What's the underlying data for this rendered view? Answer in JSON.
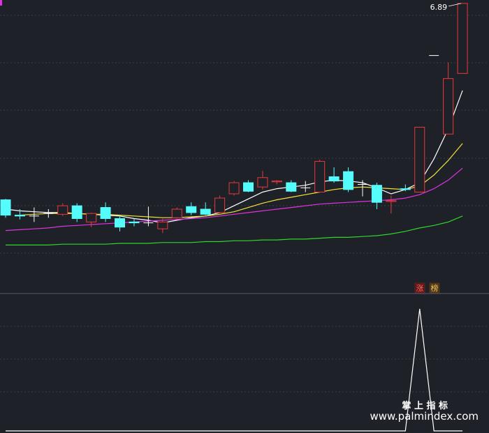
{
  "chart_data": [
    {
      "type": "candlestick",
      "open": [
        4.59,
        4.41,
        4.4,
        4.43,
        4.42,
        4.52,
        4.33,
        4.5,
        4.37,
        4.33,
        4.32,
        4.25,
        4.38,
        4.51,
        4.48,
        4.44,
        4.66,
        4.79,
        4.74,
        4.8,
        4.79,
        4.73,
        4.68,
        4.86,
        4.92,
        4.77,
        4.76,
        4.57,
        4.72,
        4.68,
        6.28,
        5.36,
        6.07
      ],
      "high": [
        4.6,
        4.48,
        4.5,
        4.48,
        4.55,
        4.55,
        4.44,
        4.56,
        4.41,
        4.37,
        4.51,
        4.37,
        4.5,
        4.56,
        4.56,
        4.64,
        4.81,
        4.82,
        4.93,
        4.82,
        4.82,
        4.81,
        5.06,
        4.97,
        4.97,
        4.82,
        4.79,
        4.64,
        4.77,
        5.44,
        6.28,
        6.2,
        6.89
      ],
      "low": [
        4.38,
        4.36,
        4.33,
        4.38,
        4.4,
        4.33,
        4.27,
        4.33,
        4.22,
        4.28,
        4.28,
        4.2,
        4.37,
        4.41,
        4.41,
        4.43,
        4.64,
        4.68,
        4.71,
        4.77,
        4.68,
        4.68,
        4.68,
        4.79,
        4.68,
        4.63,
        4.48,
        4.43,
        4.69,
        4.68,
        6.28,
        5.36,
        6.07
      ],
      "close": [
        4.41,
        4.4,
        4.4,
        4.43,
        4.52,
        4.37,
        4.43,
        4.37,
        4.27,
        4.32,
        4.32,
        4.33,
        4.48,
        4.44,
        4.42,
        4.61,
        4.79,
        4.69,
        4.85,
        4.81,
        4.69,
        4.73,
        5.04,
        4.81,
        4.71,
        4.77,
        4.56,
        4.58,
        4.71,
        5.44,
        6.28,
        6.01,
        6.89
      ],
      "up_color": "#e8393a",
      "down_color": "#54fcfc",
      "doji_color": "#ffffff",
      "ylim": [
        3.5,
        6.93
      ],
      "lines": [
        {
          "color": "#ffffff",
          "values": [
            4.48,
            4.46,
            4.45,
            4.44,
            4.44,
            4.43,
            4.42,
            4.41,
            4.4,
            4.37,
            4.35,
            4.32,
            4.35,
            4.38,
            4.4,
            4.44,
            4.52,
            4.6,
            4.68,
            4.72,
            4.74,
            4.76,
            4.8,
            4.82,
            4.81,
            4.79,
            4.73,
            4.66,
            4.71,
            4.79,
            5.07,
            5.42,
            5.87
          ]
        },
        {
          "color": "#f2e33a",
          "values": [
            null,
            4.41,
            4.42,
            4.43,
            4.43,
            4.43,
            4.42,
            4.42,
            4.41,
            4.4,
            4.39,
            4.38,
            4.38,
            4.39,
            4.4,
            4.42,
            4.45,
            4.5,
            4.55,
            4.59,
            4.62,
            4.65,
            4.68,
            4.71,
            4.73,
            4.74,
            4.73,
            4.72,
            4.71,
            4.75,
            4.88,
            5.05,
            5.25
          ]
        },
        {
          "color": "#e032e0",
          "values": [
            4.23,
            4.24,
            4.25,
            4.26,
            4.28,
            4.29,
            4.3,
            4.31,
            4.32,
            4.33,
            4.34,
            4.35,
            4.36,
            4.37,
            4.38,
            4.4,
            4.42,
            4.44,
            4.46,
            4.48,
            4.5,
            4.52,
            4.54,
            4.55,
            4.56,
            4.57,
            4.58,
            4.59,
            4.61,
            4.65,
            4.72,
            4.82,
            4.96
          ]
        },
        {
          "color": "#2fd62f",
          "values": [
            4.06,
            4.06,
            4.06,
            4.06,
            4.07,
            4.07,
            4.07,
            4.07,
            4.08,
            4.08,
            4.08,
            4.09,
            4.09,
            4.09,
            4.1,
            4.1,
            4.11,
            4.11,
            4.12,
            4.12,
            4.13,
            4.13,
            4.14,
            4.15,
            4.15,
            4.16,
            4.17,
            4.19,
            4.22,
            4.26,
            4.29,
            4.33,
            4.4
          ]
        }
      ],
      "annotation": "6.89",
      "tags": [
        "涨",
        "榜"
      ]
    },
    {
      "type": "line",
      "color": "#ffffff",
      "ylim": [
        0,
        1
      ],
      "values": [
        0,
        0,
        0,
        0,
        0,
        0,
        0,
        0,
        0,
        0,
        0,
        0,
        0,
        0,
        0,
        0,
        0,
        0,
        0,
        0,
        0,
        0,
        0,
        0,
        0,
        0,
        0,
        0,
        0,
        1,
        0,
        0,
        0
      ]
    }
  ],
  "watermark": [
    "掌 上 指 标",
    "www.palmindex.com"
  ]
}
